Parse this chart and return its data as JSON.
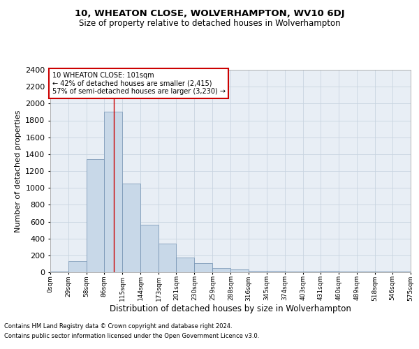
{
  "title1": "10, WHEATON CLOSE, WOLVERHAMPTON, WV10 6DJ",
  "title2": "Size of property relative to detached houses in Wolverhampton",
  "xlabel": "Distribution of detached houses by size in Wolverhampton",
  "ylabel": "Number of detached properties",
  "footnote1": "Contains HM Land Registry data © Crown copyright and database right 2024.",
  "footnote2": "Contains public sector information licensed under the Open Government Licence v3.0.",
  "annotation_line1": "10 WHEATON CLOSE: 101sqm",
  "annotation_line2": "← 42% of detached houses are smaller (2,415)",
  "annotation_line3": "57% of semi-detached houses are larger (3,230) →",
  "bar_color": "#c8d8e8",
  "bar_edge_color": "#7090b0",
  "vline_color": "#cc0000",
  "background_color": "#e8eef5",
  "bin_edges": [
    0,
    29,
    58,
    86,
    115,
    144,
    173,
    201,
    230,
    259,
    288,
    316,
    345,
    374,
    403,
    431,
    460,
    489,
    518,
    546,
    575
  ],
  "bar_heights": [
    10,
    130,
    1340,
    1900,
    1050,
    560,
    340,
    170,
    110,
    50,
    30,
    20,
    15,
    10,
    5,
    18,
    5,
    5,
    5,
    5
  ],
  "vline_x": 101,
  "ylim": [
    0,
    2400
  ],
  "yticks": [
    0,
    200,
    400,
    600,
    800,
    1000,
    1200,
    1400,
    1600,
    1800,
    2000,
    2200,
    2400
  ],
  "xtick_labels": [
    "0sqm",
    "29sqm",
    "58sqm",
    "86sqm",
    "115sqm",
    "144sqm",
    "173sqm",
    "201sqm",
    "230sqm",
    "259sqm",
    "288sqm",
    "316sqm",
    "345sqm",
    "374sqm",
    "403sqm",
    "431sqm",
    "460sqm",
    "489sqm",
    "518sqm",
    "546sqm",
    "575sqm"
  ],
  "annotation_box_color": "#ffffff",
  "annotation_box_edge": "#cc0000",
  "grid_color": "#c8d4e0",
  "title1_fontsize": 9.5,
  "title2_fontsize": 8.5,
  "ylabel_fontsize": 8,
  "xlabel_fontsize": 8.5,
  "footnote_fontsize": 6,
  "annotation_fontsize": 7,
  "ytick_fontsize": 8,
  "xtick_fontsize": 6.5
}
